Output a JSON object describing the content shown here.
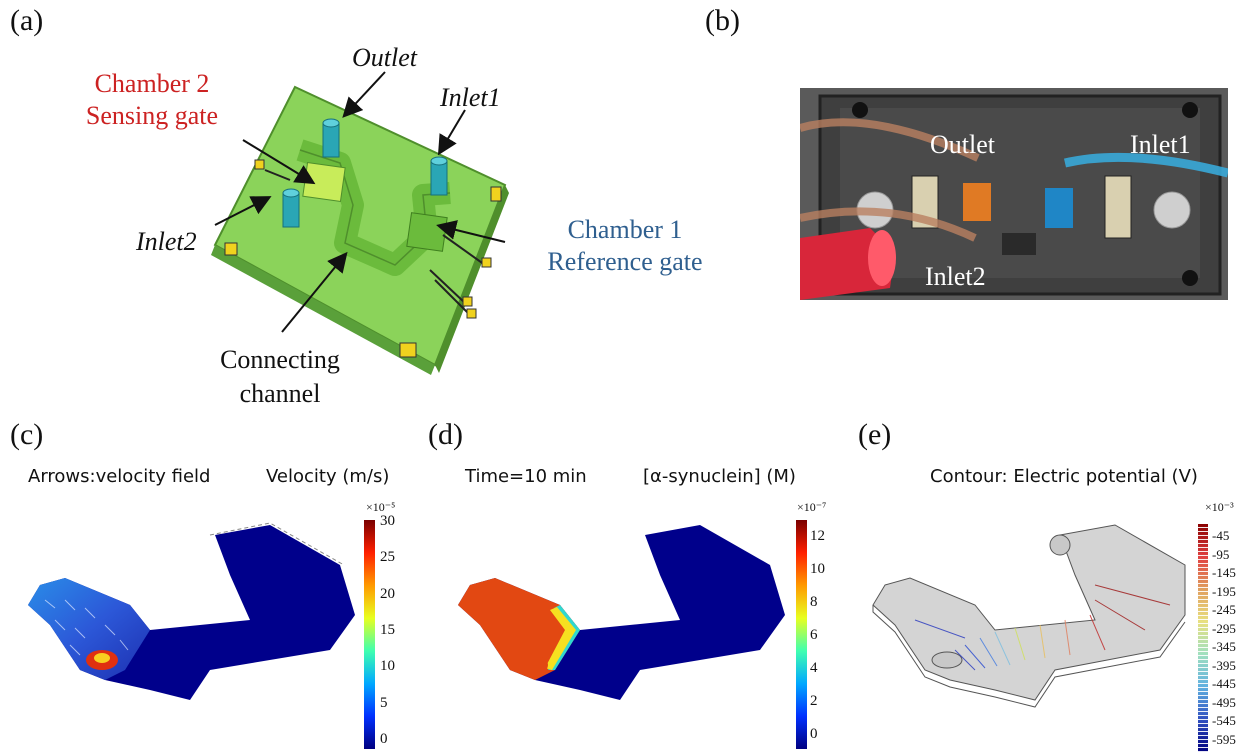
{
  "panels": {
    "a": {
      "label": "(a)",
      "outlet": "Outlet",
      "inlet1": "Inlet1",
      "inlet2": "Inlet2",
      "chamber2_line1": "Chamber 2",
      "chamber2_line2": "Sensing gate",
      "chamber1_line1": "Chamber 1",
      "chamber1_line2": "Reference gate",
      "channel_line1": "Connecting",
      "channel_line2": "channel"
    },
    "b": {
      "label": "(b)",
      "outlet": "Outlet",
      "inlet1": "Inlet1",
      "inlet2": "Inlet2"
    },
    "c": {
      "label": "(c)",
      "title_left": "Arrows:velocity field",
      "title_right": "Velocity (m/s)",
      "exponent": "×10⁻⁵",
      "ticks": [
        "30",
        "25",
        "20",
        "15",
        "10",
        "5",
        "0"
      ]
    },
    "d": {
      "label": "(d)",
      "title_left": "Time=10 min",
      "title_right": "[α-synuclein] (M)",
      "exponent": "×10⁻⁷",
      "ticks": [
        "12",
        "10",
        "8",
        "6",
        "4",
        "2",
        "0"
      ]
    },
    "e": {
      "label": "(e)",
      "title": "Contour: Electric potential (V)",
      "exponent": "×10⁻³",
      "ticks": [
        "-45",
        "-95",
        "-145",
        "-195",
        "-245",
        "-295",
        "-345",
        "-395",
        "-445",
        "-495",
        "-545",
        "-595"
      ]
    }
  },
  "colors": {
    "green_chip": "#7cc84a",
    "chip_dark": "#5aa03a",
    "red_label": "#cc2222",
    "blue_label": "#2f5f8f",
    "pillar": "#2aa6b5",
    "pad": "#f0d21e"
  }
}
